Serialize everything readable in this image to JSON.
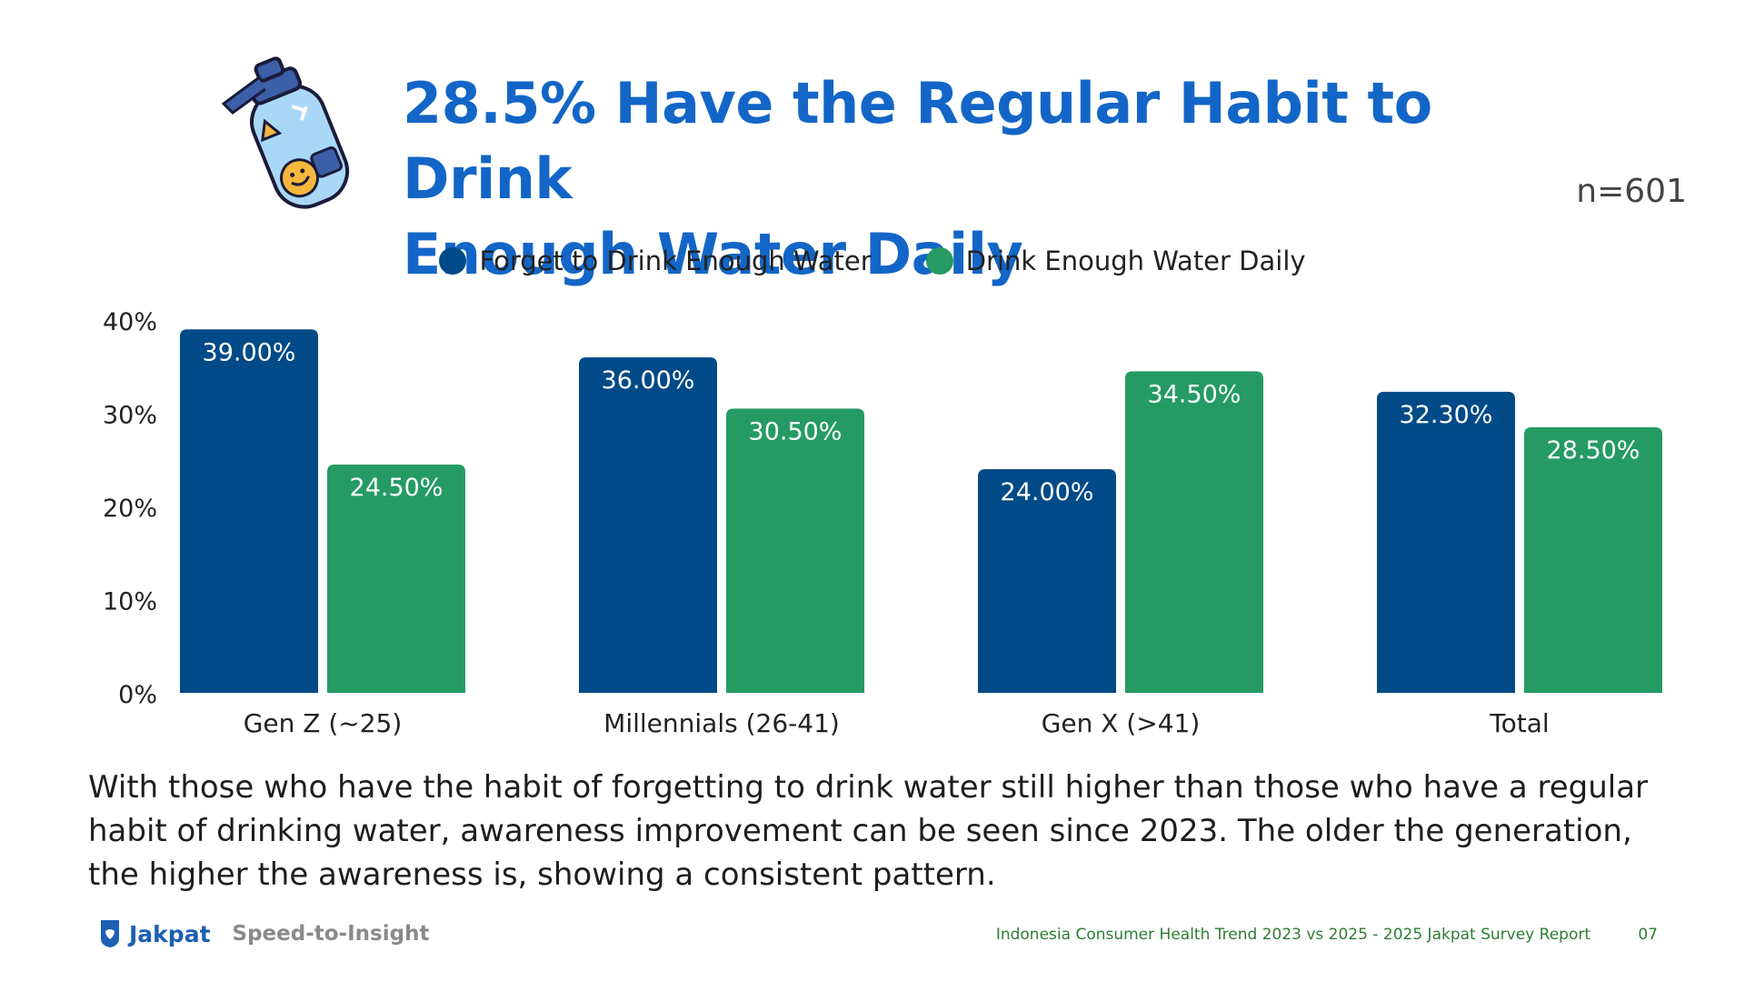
{
  "header": {
    "title_line1": "28.5% Have the Regular Habit to Drink",
    "title_line2": "Enough Water Daily",
    "sample_size": "n=601"
  },
  "chart_data": {
    "type": "bar",
    "title": "28.5% Have the Regular Habit to Drink Enough Water Daily",
    "categories": [
      "Gen Z (~25)",
      "Millennials (26-41)",
      "Gen X (>41)",
      "Total"
    ],
    "series": [
      {
        "name": "Forget to Drink Enough Water",
        "color": "#004a87",
        "values": [
          39.0,
          36.0,
          24.0,
          32.3
        ],
        "labels": [
          "39.00%",
          "36.00%",
          "24.00%",
          "32.30%"
        ]
      },
      {
        "name": "Drink Enough Water Daily",
        "color": "#259b63",
        "values": [
          24.5,
          30.5,
          34.5,
          28.5
        ],
        "labels": [
          "24.50%",
          "30.50%",
          "34.50%",
          "28.50%"
        ]
      }
    ],
    "y_ticks": [
      "0%",
      "10%",
      "20%",
      "30%",
      "40%"
    ],
    "ylim": [
      0,
      40
    ],
    "legend_position": "top-center",
    "grid": false
  },
  "caption": "With those who have the habit of forgetting to drink water still higher than those who have a regular habit of drinking water, awareness improvement can be seen since 2023. The older the generation, the higher the awareness is, showing a consistent pattern.",
  "footer": {
    "brand": "Jakpat",
    "tagline": "Speed-to-Insight",
    "report": "Indonesia Consumer Health Trend 2023 vs 2025 - 2025 Jakpat Survey Report",
    "page": "07"
  },
  "icons": [
    "water-bottle-icon",
    "jakpat-logo-icon"
  ]
}
